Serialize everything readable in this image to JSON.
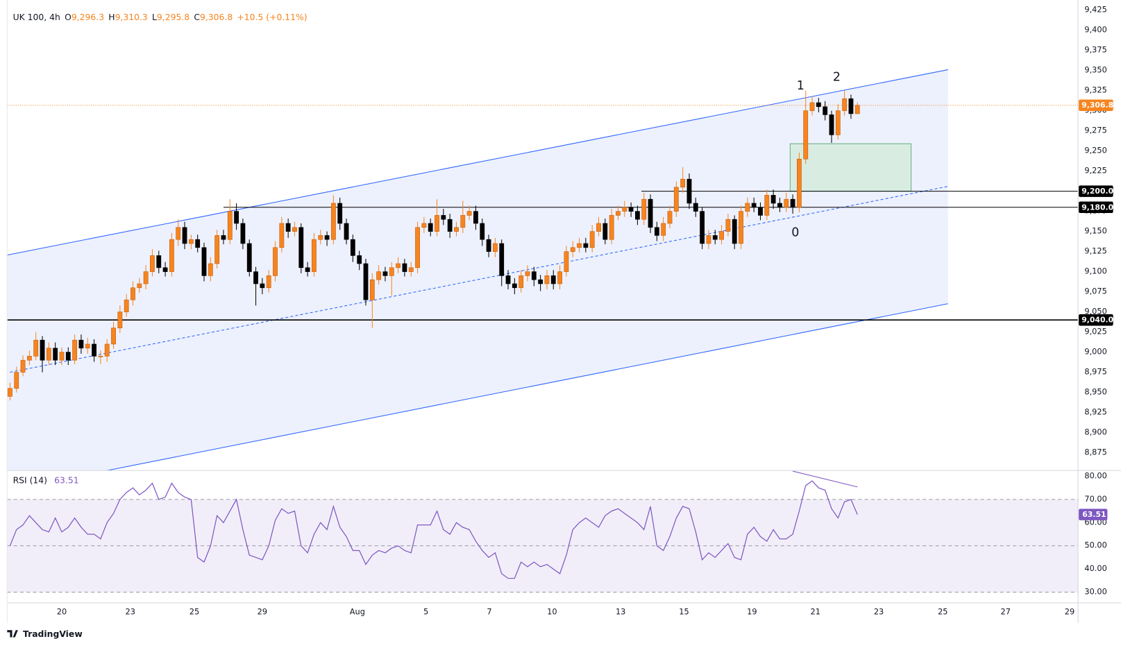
{
  "chart_data": {
    "type": "candlestick",
    "header": {
      "symbol": "UK 100, 4h",
      "fields": [
        {
          "key": "O",
          "value": "9,296.3"
        },
        {
          "key": "H",
          "value": "9,310.3"
        },
        {
          "key": "L",
          "value": "9,295.8"
        },
        {
          "key": "C",
          "value": "9,306.8"
        }
      ],
      "change": "+10.5 (+0.11%)"
    },
    "up_color": "#f7841f",
    "down_color": "#000000",
    "ohlc": [
      [
        8945,
        8962,
        8940,
        8955
      ],
      [
        8955,
        8982,
        8950,
        8975
      ],
      [
        8975,
        8996,
        8970,
        8990
      ],
      [
        8990,
        9002,
        8984,
        8995
      ],
      [
        8995,
        9025,
        8990,
        9015
      ],
      [
        9015,
        9020,
        8975,
        8990
      ],
      [
        8990,
        9012,
        8984,
        9005
      ],
      [
        9005,
        9012,
        8984,
        8990
      ],
      [
        8990,
        9006,
        8984,
        9000
      ],
      [
        9000,
        9006,
        8984,
        8990
      ],
      [
        8990,
        9022,
        8985,
        9015
      ],
      [
        9015,
        9022,
        8998,
        9005
      ],
      [
        9005,
        9018,
        8998,
        9010
      ],
      [
        9010,
        9016,
        8988,
        8995
      ],
      [
        8995,
        9002,
        8985,
        8995
      ],
      [
        8995,
        9016,
        8988,
        9010
      ],
      [
        9010,
        9038,
        9004,
        9030
      ],
      [
        9030,
        9058,
        9024,
        9050
      ],
      [
        9050,
        9072,
        9044,
        9065
      ],
      [
        9065,
        9088,
        9058,
        9080
      ],
      [
        9080,
        9092,
        9074,
        9085
      ],
      [
        9085,
        9108,
        9078,
        9100
      ],
      [
        9100,
        9128,
        9094,
        9120
      ],
      [
        9120,
        9126,
        9098,
        9105
      ],
      [
        9105,
        9112,
        9094,
        9100
      ],
      [
        9100,
        9148,
        9094,
        9140
      ],
      [
        9140,
        9165,
        9132,
        9155
      ],
      [
        9155,
        9162,
        9128,
        9135
      ],
      [
        9135,
        9146,
        9128,
        9140
      ],
      [
        9140,
        9146,
        9124,
        9130
      ],
      [
        9130,
        9136,
        9088,
        9095
      ],
      [
        9095,
        9118,
        9088,
        9110
      ],
      [
        9110,
        9152,
        9104,
        9145
      ],
      [
        9145,
        9152,
        9134,
        9140
      ],
      [
        9140,
        9190,
        9134,
        9175
      ],
      [
        9175,
        9185,
        9152,
        9160
      ],
      [
        9160,
        9166,
        9128,
        9135
      ],
      [
        9135,
        9140,
        9094,
        9100
      ],
      [
        9100,
        9106,
        9058,
        9085
      ],
      [
        9085,
        9092,
        9072,
        9080
      ],
      [
        9080,
        9102,
        9074,
        9095
      ],
      [
        9095,
        9138,
        9088,
        9130
      ],
      [
        9130,
        9168,
        9124,
        9160
      ],
      [
        9160,
        9166,
        9142,
        9150
      ],
      [
        9150,
        9162,
        9144,
        9155
      ],
      [
        9155,
        9160,
        9098,
        9105
      ],
      [
        9105,
        9112,
        9094,
        9100
      ],
      [
        9100,
        9148,
        9094,
        9140
      ],
      [
        9140,
        9152,
        9134,
        9145
      ],
      [
        9145,
        9150,
        9132,
        9140
      ],
      [
        9140,
        9195,
        9134,
        9185
      ],
      [
        9185,
        9192,
        9152,
        9160
      ],
      [
        9160,
        9166,
        9134,
        9140
      ],
      [
        9140,
        9146,
        9112,
        9120
      ],
      [
        9120,
        9126,
        9102,
        9110
      ],
      [
        9110,
        9116,
        9058,
        9065
      ],
      [
        9065,
        9098,
        9030,
        9090
      ],
      [
        9090,
        9108,
        9084,
        9100
      ],
      [
        9100,
        9106,
        9088,
        9095
      ],
      [
        9095,
        9112,
        9070,
        9105
      ],
      [
        9105,
        9118,
        9098,
        9110
      ],
      [
        9110,
        9116,
        9094,
        9100
      ],
      [
        9100,
        9112,
        9094,
        9105
      ],
      [
        9105,
        9162,
        9098,
        9155
      ],
      [
        9155,
        9168,
        9148,
        9160
      ],
      [
        9160,
        9166,
        9144,
        9150
      ],
      [
        9150,
        9190,
        9144,
        9170
      ],
      [
        9170,
        9178,
        9158,
        9165
      ],
      [
        9165,
        9172,
        9142,
        9150
      ],
      [
        9150,
        9162,
        9144,
        9155
      ],
      [
        9155,
        9188,
        9148,
        9170
      ],
      [
        9170,
        9182,
        9164,
        9175
      ],
      [
        9175,
        9182,
        9152,
        9160
      ],
      [
        9160,
        9166,
        9132,
        9140
      ],
      [
        9140,
        9146,
        9118,
        9125
      ],
      [
        9125,
        9142,
        9118,
        9135
      ],
      [
        9135,
        9140,
        9082,
        9095
      ],
      [
        9095,
        9102,
        9078,
        9085
      ],
      [
        9085,
        9092,
        9072,
        9080
      ],
      [
        9080,
        9102,
        9074,
        9095
      ],
      [
        9095,
        9108,
        9088,
        9100
      ],
      [
        9100,
        9106,
        9082,
        9090
      ],
      [
        9090,
        9096,
        9076,
        9085
      ],
      [
        9085,
        9102,
        9078,
        9095
      ],
      [
        9095,
        9102,
        9078,
        9085
      ],
      [
        9085,
        9108,
        9078,
        9100
      ],
      [
        9100,
        9132,
        9094,
        9125
      ],
      [
        9125,
        9138,
        9118,
        9130
      ],
      [
        9130,
        9142,
        9124,
        9135
      ],
      [
        9135,
        9142,
        9124,
        9130
      ],
      [
        9130,
        9158,
        9124,
        9150
      ],
      [
        9150,
        9168,
        9144,
        9160
      ],
      [
        9160,
        9166,
        9134,
        9140
      ],
      [
        9140,
        9178,
        9134,
        9170
      ],
      [
        9170,
        9182,
        9164,
        9175
      ],
      [
        9175,
        9188,
        9168,
        9180
      ],
      [
        9180,
        9186,
        9168,
        9175
      ],
      [
        9175,
        9182,
        9158,
        9165
      ],
      [
        9165,
        9198,
        9158,
        9190
      ],
      [
        9190,
        9196,
        9148,
        9155
      ],
      [
        9155,
        9162,
        9138,
        9145
      ],
      [
        9145,
        9168,
        9138,
        9160
      ],
      [
        9160,
        9182,
        9154,
        9175
      ],
      [
        9175,
        9212,
        9168,
        9205
      ],
      [
        9205,
        9230,
        9198,
        9215
      ],
      [
        9215,
        9222,
        9178,
        9185
      ],
      [
        9185,
        9192,
        9168,
        9175
      ],
      [
        9175,
        9180,
        9128,
        9135
      ],
      [
        9135,
        9152,
        9128,
        9145
      ],
      [
        9145,
        9152,
        9134,
        9140
      ],
      [
        9140,
        9158,
        9134,
        9150
      ],
      [
        9150,
        9172,
        9144,
        9165
      ],
      [
        9165,
        9170,
        9128,
        9135
      ],
      [
        9135,
        9182,
        9128,
        9175
      ],
      [
        9175,
        9192,
        9168,
        9185
      ],
      [
        9185,
        9192,
        9174,
        9180
      ],
      [
        9180,
        9186,
        9164,
        9170
      ],
      [
        9170,
        9202,
        9164,
        9195
      ],
      [
        9195,
        9202,
        9178,
        9185
      ],
      [
        9185,
        9192,
        9174,
        9180
      ],
      [
        9180,
        9198,
        9174,
        9190
      ],
      [
        9190,
        9196,
        9172,
        9180
      ],
      [
        9180,
        9248,
        9174,
        9240
      ],
      [
        9240,
        9325,
        9234,
        9300
      ],
      [
        9300,
        9318,
        9294,
        9310
      ],
      [
        9310,
        9316,
        9298,
        9305
      ],
      [
        9305,
        9312,
        9288,
        9295
      ],
      [
        9295,
        9300,
        9260,
        9270
      ],
      [
        9270,
        9308,
        9264,
        9300
      ],
      [
        9300,
        9325,
        9294,
        9315
      ],
      [
        9315,
        9320,
        9290,
        9296.3
      ],
      [
        9296.3,
        9310.3,
        9295.8,
        9306.8
      ]
    ],
    "xlim": [
      -0.44,
      165.1
    ],
    "xticks": [
      {
        "value": 8,
        "label": "20"
      },
      {
        "value": 18.6,
        "label": "23"
      },
      {
        "value": 28.5,
        "label": "25"
      },
      {
        "value": 39,
        "label": "29"
      },
      {
        "value": 53.7,
        "label": "Aug"
      },
      {
        "value": 64.3,
        "label": "5"
      },
      {
        "value": 74.1,
        "label": "7"
      },
      {
        "value": 83.8,
        "label": "10"
      },
      {
        "value": 94.4,
        "label": "13"
      },
      {
        "value": 104.2,
        "label": "15"
      },
      {
        "value": 114.7,
        "label": "19"
      },
      {
        "value": 124.5,
        "label": "21"
      },
      {
        "value": 134.3,
        "label": "23"
      },
      {
        "value": 144.2,
        "label": "25"
      },
      {
        "value": 153.9,
        "label": "27"
      },
      {
        "value": 163.8,
        "label": "29"
      }
    ],
    "ylim": [
      8853,
      9428.6
    ],
    "yticks": [
      {
        "value": 8875,
        "label": "8,875"
      },
      {
        "value": 8900,
        "label": "8,900"
      },
      {
        "value": 8925,
        "label": "8,925"
      },
      {
        "value": 8950,
        "label": "8,950"
      },
      {
        "value": 8975,
        "label": "8,975"
      },
      {
        "value": 9000,
        "label": "9,000"
      },
      {
        "value": 9025,
        "label": "9,025"
      },
      {
        "value": 9050,
        "label": "9,050"
      },
      {
        "value": 9075,
        "label": "9,075"
      },
      {
        "value": 9100,
        "label": "9,100"
      },
      {
        "value": 9125,
        "label": "9,125"
      },
      {
        "value": 9150,
        "label": "9,150"
      },
      {
        "value": 9175,
        "label": "9,175"
      },
      {
        "value": 9200,
        "label": "9,200"
      },
      {
        "value": 9225,
        "label": "9,225"
      },
      {
        "value": 9250,
        "label": "9,250"
      },
      {
        "value": 9275,
        "label": "9,275"
      },
      {
        "value": 9300,
        "label": "9,300"
      },
      {
        "value": 9325,
        "label": "9,325"
      },
      {
        "value": 9350,
        "label": "9,350"
      },
      {
        "value": 9375,
        "label": "9,375"
      },
      {
        "value": 9400,
        "label": "9,400"
      },
      {
        "value": 9425,
        "label": "9,425"
      }
    ],
    "channel": {
      "upper": [
        [
          -0.44,
          9120.7
        ],
        [
          145,
          9351
        ]
      ],
      "lower": [
        [
          -0.44,
          8828.3
        ],
        [
          145,
          9060.2
        ]
      ],
      "mid": [
        [
          0,
          8975
        ],
        [
          145,
          9206
        ]
      ],
      "color": "#2962ff",
      "fill": "#edf1fd"
    },
    "levels": [
      {
        "value": 9200,
        "label": "9,200.0",
        "from": 97.6
      },
      {
        "value": 9180,
        "label": "9,180.0",
        "from": 33
      },
      {
        "value": 9040,
        "label": "9,040.0",
        "from": -0.44
      }
    ],
    "last_price": {
      "value": 9306.8,
      "label": "9,306.8"
    },
    "zone": {
      "x": [
        120.6,
        139.3
      ],
      "y": [
        9200,
        9259
      ],
      "fill": "#d5ebdd",
      "stroke": "#66b07f"
    },
    "annotations": [
      {
        "text": "1",
        "x": 122.2,
        "y": 9330.7
      },
      {
        "text": "2",
        "x": 127.8,
        "y": 9341.4
      },
      {
        "text": "0",
        "x": 121.4,
        "y": 9148.3
      }
    ],
    "indicator": {
      "type": "line",
      "name": "RSI (14)",
      "color": "#7e57c2",
      "values": [
        50,
        57,
        59,
        63,
        60,
        57,
        56,
        62,
        56,
        58,
        62,
        58,
        55,
        55,
        53,
        60,
        64,
        70,
        73,
        75,
        72,
        74,
        77,
        70,
        71,
        77,
        73,
        71,
        70,
        45,
        43,
        50,
        63,
        60,
        65,
        70,
        57,
        46,
        45,
        44,
        50,
        61,
        66,
        64,
        65,
        50,
        47,
        55,
        60,
        57,
        67,
        58,
        54,
        48,
        48,
        42,
        46,
        48,
        47,
        49,
        50,
        48,
        47,
        59,
        59,
        59,
        65,
        57,
        55,
        60,
        58,
        57,
        52,
        48,
        45,
        47,
        38,
        36,
        36,
        43,
        41,
        43,
        41,
        42,
        40,
        38,
        46,
        57,
        60,
        62,
        60,
        58,
        63,
        65,
        66,
        64,
        62,
        60,
        57,
        67,
        50,
        48,
        54,
        62,
        67,
        66,
        56,
        44,
        47,
        45,
        48,
        51,
        45,
        44,
        55,
        58,
        54,
        52,
        57,
        53,
        53,
        55,
        65,
        76,
        78,
        75,
        74,
        66,
        62,
        69,
        70,
        63.51
      ],
      "ylim": [
        25.4,
        82.5
      ],
      "yticks": [
        {
          "value": 30,
          "label": "30.00"
        },
        {
          "value": 40,
          "label": "40.00"
        },
        {
          "value": 50,
          "label": "50.00"
        },
        {
          "value": 60,
          "label": "60.00"
        },
        {
          "value": 70,
          "label": "70.00"
        },
        {
          "value": 80,
          "label": "80.00"
        }
      ],
      "band": [
        30,
        70
      ],
      "midline": 50,
      "divergence": {
        "x": [
          121,
          131
        ],
        "y": [
          82.2,
          75.4
        ]
      }
    }
  },
  "brand": "TradingView"
}
